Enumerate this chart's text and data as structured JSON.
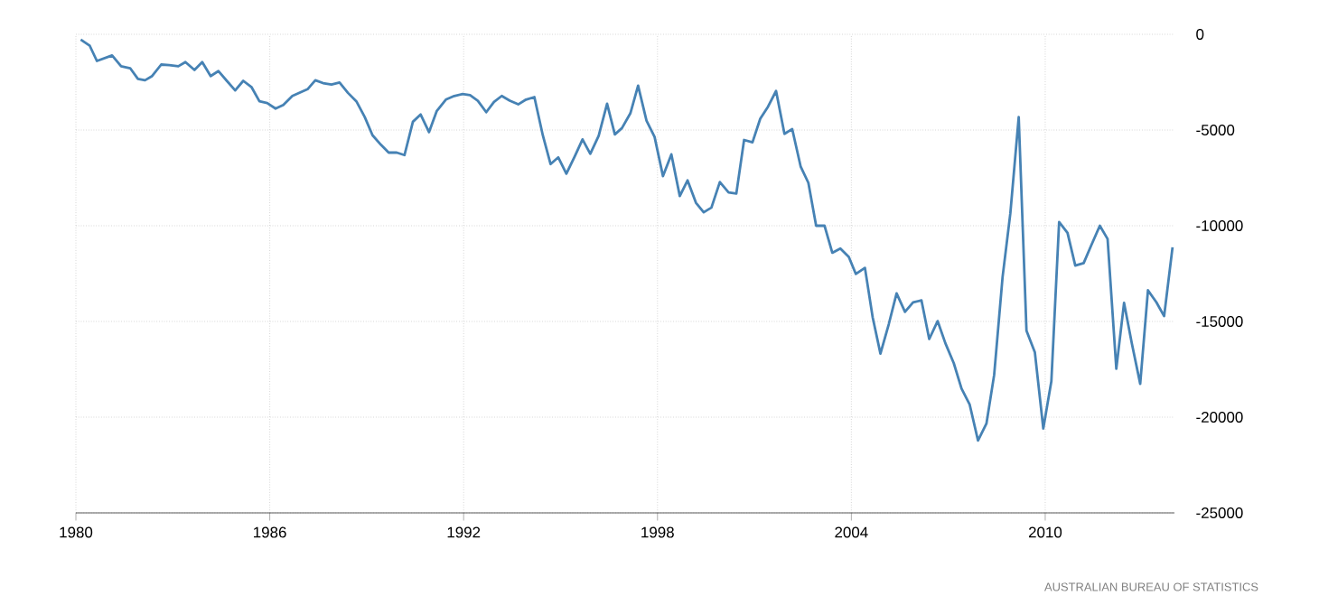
{
  "chart_data": {
    "type": "line",
    "annotations": [
      "AUSTRALIAN BUREAU OF STATISTICS"
    ],
    "x": [
      1980.15,
      1980.43,
      1980.65,
      1981.12,
      1981.4,
      1981.68,
      1981.92,
      1982.14,
      1982.36,
      1982.64,
      1982.89,
      1983.17,
      1983.39,
      1983.67,
      1983.91,
      1984.17,
      1984.41,
      1984.67,
      1984.93,
      1985.18,
      1985.44,
      1985.68,
      1985.92,
      1986.18,
      1986.42,
      1986.7,
      1986.95,
      1987.17,
      1987.41,
      1987.65,
      1987.91,
      1988.16,
      1988.42,
      1988.68,
      1988.94,
      1989.18,
      1989.44,
      1989.68,
      1989.93,
      1990.17,
      1990.43,
      1990.67,
      1990.93,
      1991.17,
      1991.45,
      1991.71,
      1991.97,
      1992.2,
      1992.44,
      1992.7,
      1992.94,
      1993.18,
      1993.43,
      1993.69,
      1993.93,
      1994.19,
      1994.45,
      1994.69,
      1994.93,
      1995.18,
      1995.44,
      1995.68,
      1995.92,
      1996.18,
      1996.44,
      1996.68,
      1996.9,
      1997.16,
      1997.4,
      1997.66,
      1997.91,
      1998.17,
      1998.43,
      1998.69,
      1998.93,
      1999.19,
      1999.43,
      1999.67,
      1999.93,
      2000.2,
      2000.44,
      2000.68,
      2000.94,
      2001.18,
      2001.42,
      2001.67,
      2001.93,
      2002.17,
      2002.43,
      2002.67,
      2002.91,
      2003.17,
      2003.41,
      2003.66,
      2003.92,
      2004.14,
      2004.42,
      2004.66,
      2004.9,
      2005.16,
      2005.4,
      2005.66,
      2005.91,
      2006.17,
      2006.41,
      2006.67,
      2006.91,
      2007.17,
      2007.41,
      2007.66,
      2007.92,
      2008.18,
      2008.42,
      2008.68,
      2008.92,
      2009.18,
      2009.42,
      2009.68,
      2009.94,
      2010.19,
      2010.43,
      2010.69,
      2010.93,
      2011.19,
      2011.43,
      2011.69,
      2011.93,
      2012.2,
      2012.44,
      2012.68,
      2012.94,
      2013.18,
      2013.44,
      2013.68,
      2013.94
    ],
    "series": [
      {
        "color": "#4682b4",
        "values": [
          -280,
          -600,
          -1390,
          -1100,
          -1670,
          -1770,
          -2330,
          -2400,
          -2180,
          -1580,
          -1610,
          -1670,
          -1450,
          -1860,
          -1450,
          -2180,
          -1920,
          -2430,
          -2930,
          -2430,
          -2770,
          -3500,
          -3590,
          -3880,
          -3690,
          -3220,
          -3030,
          -2870,
          -2400,
          -2550,
          -2620,
          -2520,
          -3060,
          -3500,
          -4320,
          -5270,
          -5770,
          -6180,
          -6180,
          -6310,
          -4570,
          -4190,
          -5110,
          -4000,
          -3410,
          -3220,
          -3120,
          -3180,
          -3470,
          -4070,
          -3530,
          -3220,
          -3470,
          -3660,
          -3410,
          -3280,
          -5270,
          -6780,
          -6430,
          -7280,
          -6370,
          -5490,
          -6240,
          -5300,
          -3630,
          -5230,
          -4900,
          -4130,
          -2680,
          -4510,
          -5360,
          -7410,
          -6270,
          -8450,
          -7630,
          -8800,
          -9300,
          -9050,
          -7720,
          -8260,
          -8320,
          -5520,
          -5640,
          -4410,
          -3780,
          -2960,
          -5200,
          -4950,
          -6900,
          -7760,
          -10000,
          -10000,
          -11410,
          -11190,
          -11630,
          -12520,
          -12200,
          -14790,
          -16680,
          -15130,
          -13530,
          -14500,
          -14000,
          -13900,
          -15920,
          -14980,
          -16140,
          -17180,
          -18510,
          -19330,
          -21220,
          -20340,
          -17790,
          -12680,
          -9360,
          -4320,
          -15480,
          -16620,
          -20590,
          -18130,
          -9810,
          -10370,
          -12080,
          -11950,
          -11000,
          -10000,
          -10690,
          -17470,
          -14030,
          -16140,
          -18260,
          -13370,
          -14000,
          -14720,
          -11130
        ]
      }
    ],
    "xlim": [
      1980,
      2014
    ],
    "ylim": [
      -25000,
      0
    ],
    "xticks": [
      1980,
      1986,
      1992,
      1998,
      2004,
      2010
    ],
    "yticks": [
      -25000,
      -20000,
      -15000,
      -10000,
      -5000,
      0
    ],
    "grid": true
  }
}
